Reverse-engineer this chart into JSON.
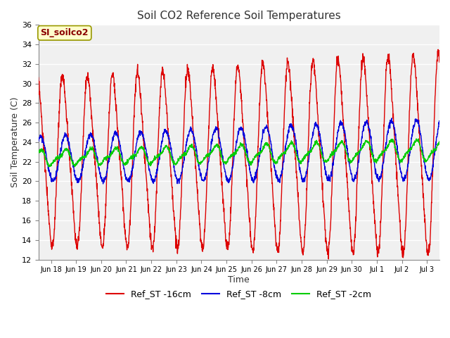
{
  "title": "Soil CO2 Reference Soil Temperatures",
  "xlabel": "Time",
  "ylabel": "Soil Temperature (C)",
  "ylim": [
    12,
    36
  ],
  "yticks": [
    12,
    14,
    16,
    18,
    20,
    22,
    24,
    26,
    28,
    30,
    32,
    34,
    36
  ],
  "legend_label": "SI_soilco2",
  "series": {
    "Ref_ST -16cm": {
      "color": "#dd0000"
    },
    "Ref_ST -8cm": {
      "color": "#0000dd"
    },
    "Ref_ST -2cm": {
      "color": "#00cc00"
    }
  },
  "xtick_labels": [
    "Jun 18",
    "Jun 19",
    "Jun 20",
    "Jun 21",
    "Jun 22",
    "Jun 23",
    "Jun 24",
    "Jun 25",
    "Jun 26",
    "Jun 27",
    "Jun 28",
    "Jun 29",
    "Jun 30",
    "Jul 1",
    "Jul 2",
    "Jul 3"
  ],
  "fig_bg": "#ffffff",
  "plot_bg": "#f0f0f0",
  "grid_color": "#ffffff"
}
